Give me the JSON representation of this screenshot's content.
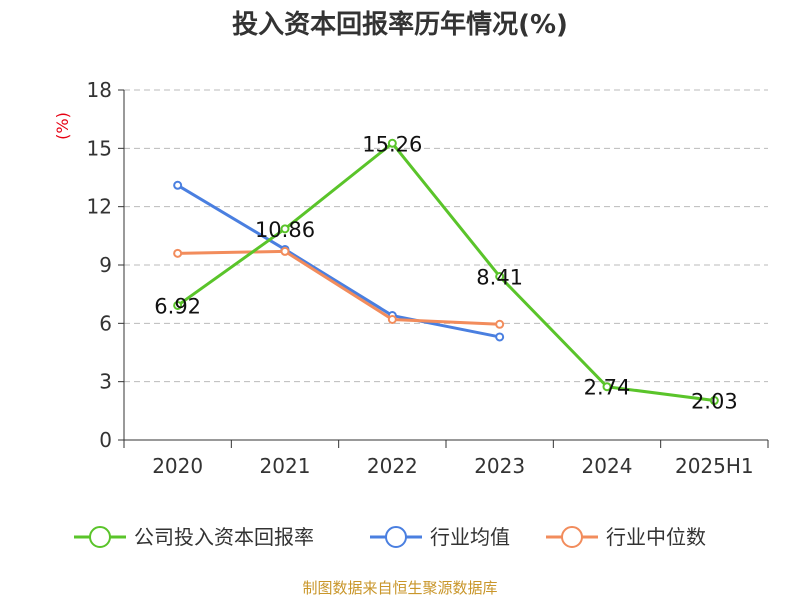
{
  "chart_data": {
    "type": "line",
    "title": "投入资本回报率历年情况(%)",
    "ylabel": "(%)",
    "categories": [
      "2020",
      "2021",
      "2022",
      "2023",
      "2024",
      "2025H1"
    ],
    "ylim": [
      0,
      18
    ],
    "yticks": [
      "0",
      "3",
      "6",
      "9",
      "12",
      "15",
      "18"
    ],
    "grid": true,
    "legend_position": "bottom",
    "series": [
      {
        "name": "公司投入资本回报率",
        "color": "#5ac42a",
        "values": [
          6.92,
          10.86,
          15.26,
          8.41,
          2.74,
          2.03
        ],
        "labels": [
          "6.92",
          "10.86",
          "15.26",
          "8.41",
          "2.74",
          "2.03"
        ]
      },
      {
        "name": "行业均值",
        "color": "#4a7fe0",
        "values": [
          13.1,
          9.8,
          6.4,
          5.3,
          null,
          null
        ]
      },
      {
        "name": "行业中位数",
        "color": "#f28c5c",
        "values": [
          9.6,
          9.7,
          6.2,
          5.95,
          null,
          null
        ]
      }
    ]
  },
  "source": "制图数据来自恒生聚源数据库"
}
